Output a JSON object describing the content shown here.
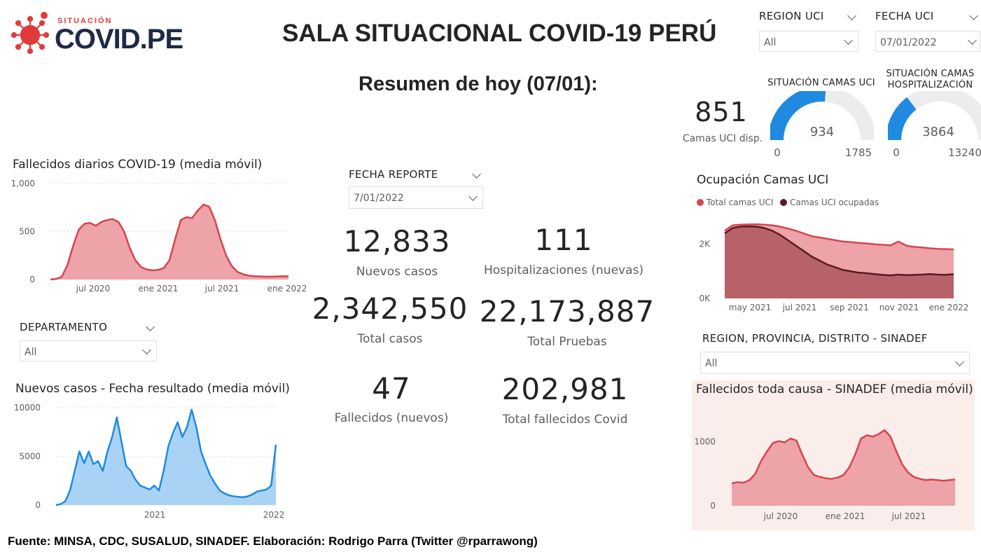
{
  "logo": {
    "small": "SITUACIÓN",
    "big": "COVID.PE"
  },
  "title": "SALA SITUACIONAL COVID-19 PERÚ",
  "subtitle": "Resumen de hoy (07/01):",
  "slicers": {
    "region_uci": {
      "label": "REGION UCI",
      "value": "All"
    },
    "fecha_uci": {
      "label": "FECHA UCI",
      "value": "07/01/2022"
    },
    "fecha_reporte": {
      "label": "FECHA REPORTE",
      "value": "7/01/2022"
    },
    "departamento": {
      "label": "DEPARTAMENTO",
      "value": "All"
    },
    "region_sinadef": {
      "label": "REGION, PROVINCIA, DISTRITO - SINADEF",
      "value": "All"
    }
  },
  "kpis": {
    "nuevos_casos": {
      "value": "12,833",
      "label": "Nuevos casos"
    },
    "hospitalizaciones": {
      "value": "111",
      "label": "Hospitalizaciones (nuevas)"
    },
    "total_casos": {
      "value": "2,342,550",
      "label": "Total casos"
    },
    "total_pruebas": {
      "value": "22,173,887",
      "label": "Total Pruebas"
    },
    "fallecidos": {
      "value": "47",
      "label": "Fallecidos (nuevos)"
    },
    "total_fallecidos": {
      "value": "202,981",
      "label": "Total fallecidos Covid"
    }
  },
  "uci_card": {
    "value": "851",
    "label": "Camas UCI disp."
  },
  "gauges": {
    "uci": {
      "title": "SITUACIÓN CAMAS UCI",
      "value": "934",
      "min": "0",
      "max": "1785",
      "fraction": 0.523
    },
    "hosp": {
      "title_1": "SITUACIÓN CAMAS",
      "title_2": "HOSPITALIZACIÓN",
      "value": "3864",
      "min": "0",
      "max": "13240",
      "fraction": 0.292
    }
  },
  "colors": {
    "red": "#d64550",
    "red_fill": "#eda3a8",
    "blue": "#1f8ae0",
    "blue_fill": "#a9d3f5",
    "dark_red": "#5a1a1f",
    "gauge_bg": "#ececec",
    "sinadef_bg": "#fbeeea"
  },
  "chart_data": [
    {
      "id": "fallecidos",
      "type": "area",
      "title": "Fallecidos diarios COVID-19 (media móvil)",
      "x_ticks": [
        "jul 2020",
        "ene 2021",
        "jul 2021",
        "ene 2022"
      ],
      "y_ticks": [
        "1,000",
        "500",
        "0"
      ],
      "ylim": [
        0,
        1000
      ],
      "values": [
        0,
        5,
        30,
        150,
        350,
        520,
        580,
        590,
        560,
        600,
        620,
        630,
        600,
        500,
        330,
        200,
        130,
        105,
        95,
        100,
        120,
        200,
        420,
        620,
        650,
        640,
        720,
        780,
        760,
        620,
        420,
        250,
        140,
        80,
        55,
        40,
        35,
        32,
        30,
        30,
        32,
        35,
        33
      ]
    },
    {
      "id": "casos",
      "type": "area",
      "title": "Nuevos casos - Fecha resultado (media móvil)",
      "x_ticks": [
        "2021",
        "2022"
      ],
      "y_ticks": [
        "10000",
        "5000",
        "0"
      ],
      "ylim": [
        0,
        10000
      ],
      "values": [
        0,
        100,
        400,
        1500,
        3500,
        5500,
        4300,
        5500,
        4200,
        4500,
        3500,
        5500,
        7000,
        9000,
        6500,
        4000,
        3500,
        2600,
        2000,
        1800,
        1600,
        2000,
        1500,
        3500,
        6000,
        7400,
        8500,
        7000,
        8000,
        9800,
        8000,
        5500,
        4200,
        3000,
        2200,
        1500,
        1200,
        1000,
        900,
        850,
        800,
        900,
        1100,
        1400,
        1500,
        1600,
        2000,
        6200
      ]
    },
    {
      "id": "ocupacion",
      "type": "area",
      "title": "Ocupación Camas UCI",
      "legend": [
        "Total camas UCI",
        "Camas UCI ocupadas"
      ],
      "x_ticks": [
        "may 2021",
        "jul 2021",
        "sep 2021",
        "nov 2021",
        "ene 2022"
      ],
      "y_ticks": [
        "2K",
        "0K"
      ],
      "ylim": [
        0,
        3000
      ],
      "series": [
        {
          "name": "Total camas UCI",
          "values": [
            2500,
            2700,
            2720,
            2730,
            2740,
            2720,
            2700,
            2650,
            2580,
            2500,
            2400,
            2300,
            2250,
            2200,
            2150,
            2100,
            2080,
            2050,
            2030,
            2000,
            1980,
            1960,
            2100,
            1950,
            1900,
            1880,
            1850,
            1830,
            1820,
            1810
          ]
        },
        {
          "name": "Camas UCI ocupadas",
          "values": [
            2400,
            2600,
            2650,
            2660,
            2650,
            2600,
            2500,
            2350,
            2150,
            1950,
            1750,
            1550,
            1400,
            1250,
            1150,
            1050,
            1000,
            950,
            930,
            900,
            870,
            850,
            880,
            860,
            870,
            880,
            900,
            880,
            870,
            900
          ]
        }
      ]
    },
    {
      "id": "sinadef",
      "type": "area",
      "title": "Fallecidos toda causa - SINADEF (media móvil)",
      "x_ticks": [
        "jul 2020",
        "ene 2021",
        "jul 2021"
      ],
      "y_ticks": [
        "1000",
        "0"
      ],
      "ylim": [
        0,
        1400
      ],
      "values": [
        350,
        370,
        360,
        400,
        500,
        700,
        850,
        980,
        1010,
        990,
        1050,
        1020,
        800,
        600,
        480,
        450,
        430,
        420,
        440,
        480,
        600,
        800,
        1050,
        1100,
        1080,
        1120,
        1180,
        1080,
        850,
        650,
        520,
        450,
        420,
        400,
        410,
        400,
        390,
        400,
        410
      ]
    }
  ],
  "footer": "Fuente: MINSA, CDC, SUSALUD, SINADEF. Elaboración: Rodrigo Parra (Twitter @rparrawong)"
}
